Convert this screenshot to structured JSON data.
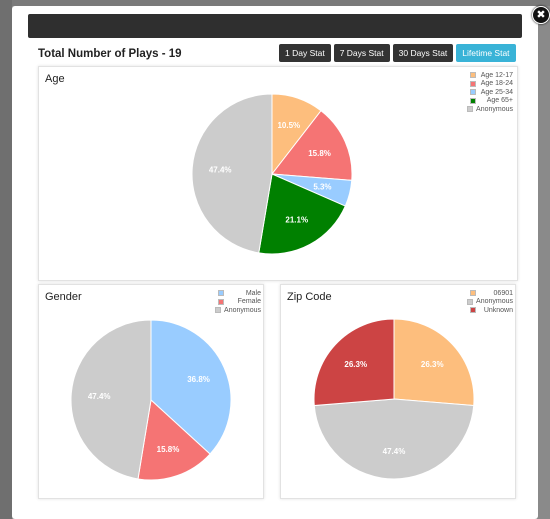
{
  "modal": {
    "close_icon": "close-icon",
    "close_glyph": "✖",
    "title": "Total Number of Plays - 19",
    "buttons": [
      {
        "label": "1 Day Stat",
        "active": false
      },
      {
        "label": "7 Days Stat",
        "active": false
      },
      {
        "label": "30 Days Stat",
        "active": false
      },
      {
        "label": "Lifetime Stat",
        "active": true
      }
    ]
  },
  "panels": {
    "age": {
      "title": "Age"
    },
    "gender": {
      "title": "Gender"
    },
    "zip": {
      "title": "Zip Code"
    }
  },
  "chart_data": [
    {
      "type": "pie",
      "title": "Age",
      "categories": [
        "Age 12-17",
        "Age 18-24",
        "Age 25-34",
        "Age 65+",
        "Anonymous"
      ],
      "values": [
        10.5,
        15.8,
        5.3,
        21.1,
        47.4
      ],
      "labels": [
        "10.5%",
        "15.8%",
        "5.3%",
        "21.1%",
        "47.4%"
      ],
      "colors": [
        "#fdbe7d",
        "#f57474",
        "#99ccff",
        "#008000",
        "#cccccc"
      ],
      "legend_position": "top-right"
    },
    {
      "type": "pie",
      "title": "Gender",
      "categories": [
        "Male",
        "Female",
        "Anonymous"
      ],
      "values": [
        36.8,
        15.8,
        47.4
      ],
      "labels": [
        "36.8%",
        "15.8%",
        "47.4%"
      ],
      "colors": [
        "#99ccff",
        "#f57474",
        "#cccccc"
      ],
      "legend_position": "top-right"
    },
    {
      "type": "pie",
      "title": "Zip Code",
      "categories": [
        "06901",
        "Anonymous",
        "Unknown"
      ],
      "values": [
        26.3,
        47.4,
        26.3
      ],
      "labels": [
        "26.3%",
        "47.4%",
        "26.3%"
      ],
      "colors": [
        "#fdbe7d",
        "#cccccc",
        "#cc4444"
      ],
      "legend_position": "top-right"
    }
  ]
}
